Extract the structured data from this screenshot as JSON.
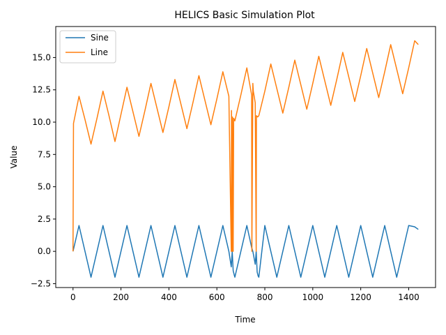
{
  "chart_data": {
    "type": "line",
    "title": "HELICS Basic Simulation Plot",
    "xlabel": "Time",
    "ylabel": "Value",
    "xlim": [
      -72,
      1512
    ],
    "ylim": [
      -2.8,
      17.4
    ],
    "x_ticks": [
      0,
      200,
      400,
      600,
      800,
      1000,
      1200,
      1400
    ],
    "x_tick_labels": [
      "0",
      "200",
      "400",
      "600",
      "800",
      "1000",
      "1200",
      "1400"
    ],
    "y_ticks": [
      -2.5,
      0.0,
      2.5,
      5.0,
      7.5,
      10.0,
      12.5,
      15.0
    ],
    "y_tick_labels": [
      "−2.5",
      "0.0",
      "2.5",
      "5.0",
      "7.5",
      "10.0",
      "12.5",
      "15.0"
    ],
    "grid": false,
    "legend_position": "upper-left",
    "series": [
      {
        "name": "Sine",
        "color": "#1f77b4",
        "description_points": {
          "x": [
            0,
            25,
            50,
            75,
            100,
            125,
            150,
            175,
            200,
            225,
            250,
            275,
            300,
            325,
            350,
            375,
            400,
            425,
            450,
            475,
            500,
            525,
            550,
            575,
            600,
            625,
            650,
            660,
            664,
            668,
            672,
            675,
            700,
            725,
            745,
            750,
            760,
            764,
            768,
            772,
            775,
            800,
            825,
            850,
            875,
            900,
            925,
            950,
            975,
            1000,
            1025,
            1050,
            1075,
            1100,
            1125,
            1150,
            1175,
            1200,
            1225,
            1250,
            1275,
            1300,
            1325,
            1350,
            1375,
            1400,
            1425,
            1440
          ],
          "y": [
            0,
            2,
            0,
            -2,
            0,
            2,
            0,
            -2,
            0,
            2,
            0,
            -2,
            0,
            2,
            0,
            -2,
            0,
            2,
            0,
            -2,
            0,
            2,
            0,
            -2,
            0,
            2,
            0,
            -1.2,
            0,
            -1.5,
            -1.8,
            -2,
            0,
            2,
            0.3,
            0,
            -1.0,
            0,
            -1.6,
            -1.9,
            -2,
            2,
            0,
            -2,
            0,
            2,
            0,
            -2,
            0,
            2,
            0,
            -2,
            0,
            2,
            0,
            -2,
            0,
            2,
            0,
            -2,
            0,
            2,
            0,
            -2,
            0,
            2,
            1.9,
            1.7
          ]
        }
      },
      {
        "name": "Line",
        "color": "#ff7f0e",
        "description_points": {
          "x": [
            0,
            2,
            25,
            50,
            75,
            100,
            125,
            150,
            175,
            200,
            225,
            250,
            275,
            300,
            325,
            350,
            375,
            400,
            425,
            450,
            475,
            500,
            525,
            550,
            575,
            600,
            625,
            650,
            660,
            661,
            664,
            665,
            668,
            670,
            675,
            700,
            725,
            745,
            746,
            750,
            752,
            760,
            764,
            765,
            770,
            775,
            800,
            825,
            850,
            875,
            900,
            925,
            950,
            975,
            1000,
            1025,
            1050,
            1075,
            1100,
            1125,
            1150,
            1175,
            1200,
            1225,
            1250,
            1275,
            1300,
            1325,
            1350,
            1375,
            1400,
            1425,
            1440
          ],
          "y": [
            0,
            9.9,
            12.0,
            10.2,
            8.3,
            10.3,
            12.4,
            10.5,
            8.5,
            10.6,
            12.7,
            10.8,
            8.9,
            10.9,
            13.0,
            11.1,
            9.2,
            11.2,
            13.3,
            11.4,
            9.5,
            11.5,
            13.6,
            11.7,
            9.8,
            11.8,
            13.9,
            12.0,
            0,
            10.9,
            0,
            10.4,
            0,
            10.3,
            10.1,
            12.1,
            14.2,
            12.1,
            0,
            13.0,
            12.4,
            11.5,
            0,
            10.5,
            10.4,
            10.5,
            12.4,
            14.5,
            12.6,
            10.7,
            12.7,
            14.8,
            12.9,
            11.0,
            13.0,
            15.1,
            13.2,
            11.3,
            13.3,
            15.4,
            13.5,
            11.6,
            13.6,
            15.7,
            13.8,
            11.9,
            13.9,
            16.0,
            14.1,
            12.2,
            14.2,
            16.3,
            16.0
          ]
        }
      }
    ]
  }
}
